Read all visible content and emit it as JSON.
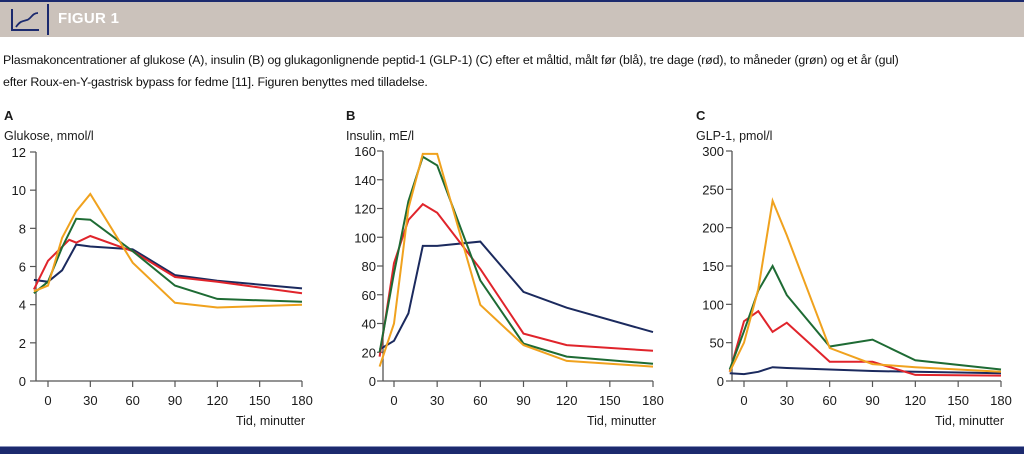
{
  "header": {
    "title": "FIGUR 1",
    "icon": "line-chart-icon"
  },
  "caption": {
    "line1": "Plasmakoncentrationer af glukose (A), insulin (B) og glukagonlignende peptid-1 (GLP-1) (C) efter et måltid, målt før (blå), tre dage (rød), to måneder (grøn) og et år (gul)",
    "line2": "efter Roux-en-Y-gastrisk bypass for fedme [11]. Figuren benyttes med tilladelse."
  },
  "colors": {
    "header_bg": "#cbc2bb",
    "brand_navy": "#1c2a6e",
    "before": "#1b2a5e",
    "three_days": "#e0242b",
    "two_months": "#1e6b34",
    "one_year": "#f0a21e"
  },
  "chart_data": [
    {
      "type": "line",
      "panel": "A",
      "ylabel": "Glukose, mmol/l",
      "xlabel": "Tid, minutter",
      "ylim": [
        0,
        12
      ],
      "xlim": [
        -10,
        180
      ],
      "yticks": [
        "0",
        "2",
        "4",
        "6",
        "8",
        "10",
        "12"
      ],
      "xticks": [
        "0",
        "30",
        "60",
        "90",
        "120",
        "150",
        "180"
      ],
      "grid": false,
      "series": [
        {
          "name": "før (blå)",
          "color": "#1b2a5e",
          "x": [
            -10,
            0,
            10,
            20,
            30,
            60,
            90,
            120,
            180
          ],
          "values": [
            5.3,
            5.2,
            5.8,
            7.15,
            7.05,
            6.9,
            5.55,
            5.25,
            4.85
          ]
        },
        {
          "name": "tre dage (rød)",
          "color": "#e0242b",
          "x": [
            -10,
            0,
            15,
            20,
            30,
            60,
            90,
            120,
            180
          ],
          "values": [
            4.8,
            6.3,
            7.4,
            7.25,
            7.6,
            6.8,
            5.45,
            5.2,
            4.6
          ]
        },
        {
          "name": "to måneder (grøn)",
          "color": "#1e6b34",
          "x": [
            -10,
            0,
            10,
            20,
            30,
            60,
            90,
            120,
            180
          ],
          "values": [
            4.6,
            5.2,
            7.0,
            8.5,
            8.45,
            6.8,
            5.0,
            4.3,
            4.15
          ]
        },
        {
          "name": "et år (gul)",
          "color": "#f0a21e",
          "x": [
            -10,
            0,
            10,
            20,
            30,
            60,
            90,
            120,
            180
          ],
          "values": [
            4.7,
            5.0,
            7.5,
            8.9,
            9.8,
            6.2,
            4.1,
            3.85,
            4.0
          ]
        }
      ]
    },
    {
      "type": "line",
      "panel": "B",
      "ylabel": "Insulin, mE/l",
      "xlabel": "Tid, minutter",
      "ylim": [
        0,
        160
      ],
      "xlim": [
        -10,
        180
      ],
      "yticks": [
        "0",
        "20",
        "40",
        "60",
        "80",
        "100",
        "120",
        "140",
        "160"
      ],
      "xticks": [
        "0",
        "30",
        "60",
        "90",
        "120",
        "150",
        "180"
      ],
      "grid": false,
      "series": [
        {
          "name": "før (blå)",
          "color": "#1b2a5e",
          "x": [
            -10,
            0,
            10,
            20,
            30,
            60,
            90,
            120,
            180
          ],
          "values": [
            22,
            28,
            47,
            94,
            94,
            97,
            62,
            51,
            34
          ]
        },
        {
          "name": "tre dage (rød)",
          "color": "#e0242b",
          "x": [
            -10,
            0,
            10,
            20,
            30,
            60,
            90,
            120,
            180
          ],
          "values": [
            17,
            82,
            112,
            123,
            117,
            78,
            33,
            25,
            21
          ]
        },
        {
          "name": "to måneder (grøn)",
          "color": "#1e6b34",
          "x": [
            -10,
            0,
            10,
            20,
            30,
            60,
            90,
            120,
            180
          ],
          "values": [
            20,
            75,
            125,
            156,
            150,
            70,
            26,
            17,
            12
          ]
        },
        {
          "name": "et år (gul)",
          "color": "#f0a21e",
          "x": [
            -10,
            0,
            10,
            20,
            30,
            60,
            90,
            120,
            180
          ],
          "values": [
            10,
            40,
            120,
            158,
            158,
            53,
            25,
            14,
            10
          ]
        }
      ]
    },
    {
      "type": "line",
      "panel": "C",
      "ylabel": "GLP-1, pmol/l",
      "xlabel": "Tid, minutter",
      "ylim": [
        0,
        300
      ],
      "xlim": [
        -10,
        180
      ],
      "yticks": [
        "0",
        "50",
        "100",
        "150",
        "200",
        "250",
        "300"
      ],
      "xticks": [
        "0",
        "30",
        "60",
        "90",
        "120",
        "150",
        "180"
      ],
      "grid": false,
      "series": [
        {
          "name": "før (blå)",
          "color": "#1b2a5e",
          "x": [
            -10,
            0,
            10,
            20,
            30,
            60,
            90,
            120,
            180
          ],
          "values": [
            10,
            9,
            12,
            18,
            17,
            15,
            13,
            12,
            10
          ]
        },
        {
          "name": "tre dage (rød)",
          "color": "#e0242b",
          "x": [
            -10,
            0,
            10,
            20,
            30,
            60,
            90,
            120,
            180
          ],
          "values": [
            12,
            78,
            91,
            64,
            76,
            25,
            25,
            8,
            7
          ]
        },
        {
          "name": "to måneder (grøn)",
          "color": "#1e6b34",
          "x": [
            -10,
            0,
            10,
            20,
            30,
            60,
            90,
            120,
            180
          ],
          "values": [
            15,
            65,
            118,
            150,
            112,
            45,
            54,
            27,
            15
          ]
        },
        {
          "name": "et år (gul)",
          "color": "#f0a21e",
          "x": [
            -10,
            0,
            10,
            20,
            30,
            60,
            90,
            120,
            180
          ],
          "values": [
            12,
            50,
            120,
            235,
            190,
            43,
            22,
            18,
            12
          ]
        }
      ]
    }
  ]
}
